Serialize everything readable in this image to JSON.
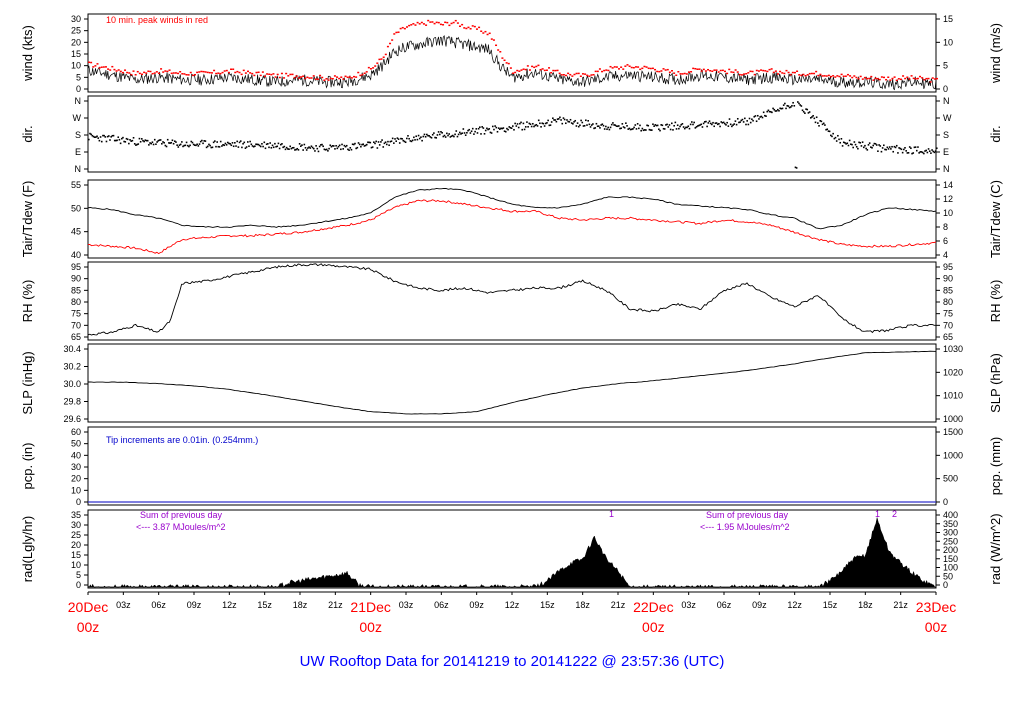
{
  "title": "UW Rooftop Data for 20141219  to  20141222 @ 23:57:36  (UTC)",
  "colors": {
    "primary": "#000000",
    "secondary": "#ff0000",
    "rain_note": "#0000cc",
    "rad_note": "#9900cc",
    "date_label": "#ff0000"
  },
  "x_axis": {
    "unit": "hours since 20Dec 00z",
    "range": [
      0,
      72
    ],
    "major": [
      {
        "hour": 0,
        "day": "20Dec",
        "time": "00z"
      },
      {
        "hour": 24,
        "day": "21Dec",
        "time": "00z"
      },
      {
        "hour": 48,
        "day": "22Dec",
        "time": "00z"
      },
      {
        "hour": 72,
        "day": "23Dec",
        "time": "00z"
      }
    ],
    "minor_labels": [
      "03z",
      "06z",
      "09z",
      "12z",
      "15z",
      "18z",
      "21z"
    ]
  },
  "panels": [
    {
      "id": "wind",
      "ylabel_left": "wind (kts)",
      "ylabel_right": "wind (m/s)",
      "left_ticks": [
        "0",
        "5",
        "10",
        "15",
        "20",
        "25",
        "30"
      ],
      "right_ticks": [
        "0",
        "5",
        "10",
        "15"
      ],
      "note": "10 min. peak winds in red"
    },
    {
      "id": "dir",
      "ylabel_left": "dir.",
      "ylabel_right": "dir.",
      "left_ticks": [
        "N",
        "E",
        "S",
        "W",
        "N"
      ],
      "right_ticks": [
        "N",
        "E",
        "S",
        "W",
        "N"
      ]
    },
    {
      "id": "temp",
      "ylabel_left": "Tair/Tdew (F)",
      "ylabel_right": "Tair/Tdew (C)",
      "left_ticks": [
        "40",
        "45",
        "50",
        "55"
      ],
      "right_ticks": [
        "4",
        "6",
        "8",
        "10",
        "12",
        "14"
      ]
    },
    {
      "id": "rh",
      "ylabel_left": "RH (%)",
      "ylabel_right": "RH (%)",
      "left_ticks": [
        "65",
        "70",
        "75",
        "80",
        "85",
        "90",
        "95"
      ],
      "right_ticks": [
        "65",
        "70",
        "75",
        "80",
        "85",
        "90",
        "95"
      ]
    },
    {
      "id": "slp",
      "ylabel_left": "SLP (inHg)",
      "ylabel_right": "SLP (hPa)",
      "left_ticks": [
        "29.6",
        "29.8",
        "30.0",
        "30.2",
        "30.4"
      ],
      "right_ticks": [
        "1000",
        "1010",
        "1020",
        "1030"
      ]
    },
    {
      "id": "pcp",
      "ylabel_left": "pcp. (in)",
      "ylabel_right": "pcp. (mm)",
      "left_ticks": [
        "0",
        "10",
        "20",
        "30",
        "40",
        "50",
        "60"
      ],
      "right_ticks": [
        "0",
        "500",
        "1000",
        "1500"
      ],
      "note": "Tip increments are 0.01in. (0.254mm.)"
    },
    {
      "id": "rad",
      "ylabel_left": "rad(Lgly/hr)",
      "ylabel_right": "rad (W/m^2)",
      "left_ticks": [
        "0",
        "5",
        "10",
        "15",
        "20",
        "25",
        "30",
        "35"
      ],
      "right_ticks": [
        "0",
        "50",
        "100",
        "150",
        "200",
        "250",
        "300",
        "350",
        "400"
      ],
      "notes": [
        {
          "line1": "Sum of previous day",
          "line2": "<--- 3.87 MJoules/m^2"
        },
        {
          "line1": "Sum of previous day",
          "line2": "<--- 1.95 MJoules/m^2"
        }
      ],
      "markers": [
        "1",
        "1",
        "2"
      ]
    }
  ],
  "chart_data": {
    "type": "line",
    "title": "UW Rooftop Data for 20141219  to  20141222 @ 23:57:36  (UTC)",
    "x_unit": "hours since 20Dec 00z",
    "xlim": [
      0,
      72
    ],
    "wind": {
      "ylabel": "wind (kts)",
      "ylim": [
        0,
        30
      ],
      "series": [
        {
          "name": "wind",
          "x": [
            0,
            2,
            4,
            6,
            8,
            10,
            12,
            14,
            16,
            18,
            20,
            22,
            24,
            25,
            26,
            27,
            28,
            29,
            30,
            31,
            32,
            33,
            34,
            35,
            36,
            38,
            40,
            42,
            44,
            46,
            48,
            50,
            52,
            54,
            56,
            58,
            60,
            62,
            64,
            66,
            68,
            70,
            72
          ],
          "values": [
            8,
            6,
            4,
            5,
            4,
            4,
            5,
            4,
            3,
            4,
            3,
            3,
            6,
            10,
            16,
            18,
            19,
            20,
            21,
            20,
            19,
            18,
            17,
            10,
            5,
            7,
            4,
            3,
            5,
            6,
            5,
            4,
            6,
            5,
            4,
            5,
            4,
            4,
            3,
            3,
            2,
            3,
            2
          ]
        },
        {
          "name": "10 min. peak winds",
          "x": [
            0,
            2,
            4,
            6,
            8,
            10,
            12,
            14,
            16,
            18,
            20,
            22,
            24,
            25,
            26,
            27,
            28,
            29,
            30,
            31,
            32,
            33,
            34,
            35,
            36,
            38,
            40,
            42,
            44,
            46,
            48,
            50,
            52,
            54,
            56,
            58,
            60,
            62,
            64,
            66,
            68,
            70,
            72
          ],
          "values": [
            11,
            9,
            7,
            8,
            7,
            7,
            8,
            7,
            6,
            6,
            5,
            5,
            9,
            14,
            24,
            27,
            28,
            29,
            28,
            29,
            27,
            26,
            24,
            15,
            8,
            10,
            7,
            6,
            9,
            10,
            9,
            7,
            9,
            8,
            7,
            8,
            7,
            7,
            6,
            5,
            5,
            5,
            4
          ]
        }
      ]
    },
    "temperature": {
      "ylabel": "Tair/Tdew (F)",
      "ylim": [
        37.5,
        57.5
      ],
      "series": [
        {
          "name": "Tair",
          "x": [
            0,
            2,
            4,
            6,
            8,
            10,
            12,
            14,
            16,
            18,
            20,
            22,
            24,
            26,
            28,
            30,
            32,
            34,
            36,
            38,
            40,
            42,
            44,
            46,
            48,
            50,
            52,
            54,
            56,
            58,
            60,
            62,
            64,
            66,
            68,
            70,
            72
          ],
          "values": [
            51,
            50.5,
            49,
            48,
            46,
            45.5,
            45.5,
            46,
            45.5,
            46,
            47,
            48,
            49.5,
            54,
            56,
            56.5,
            56,
            54,
            52,
            51,
            51,
            52,
            54,
            54,
            53.5,
            52,
            51.5,
            51,
            50.5,
            49,
            48,
            45,
            46,
            49,
            51,
            50.5,
            50
          ]
        },
        {
          "name": "Tdew",
          "x": [
            0,
            2,
            4,
            6,
            8,
            10,
            12,
            14,
            16,
            18,
            20,
            22,
            24,
            26,
            28,
            30,
            32,
            34,
            36,
            38,
            40,
            42,
            44,
            46,
            48,
            50,
            52,
            54,
            56,
            58,
            60,
            62,
            64,
            66,
            68,
            70,
            72
          ],
          "values": [
            40.5,
            40,
            39.5,
            38,
            42,
            42.5,
            43,
            43,
            43.5,
            44,
            45,
            46,
            47.5,
            51,
            53,
            53,
            52,
            51,
            50,
            50,
            48,
            47.5,
            48,
            48,
            47.5,
            47,
            46.5,
            47.5,
            47,
            46,
            44,
            42,
            40.5,
            40,
            40,
            40.5,
            41
          ]
        }
      ]
    },
    "direction": {
      "ylabel": "dir.",
      "categories": [
        "N",
        "E",
        "S",
        "W",
        "N"
      ],
      "series": [
        {
          "name": "dir",
          "x": [
            0,
            4,
            8,
            12,
            16,
            20,
            24,
            28,
            32,
            36,
            40,
            44,
            48,
            52,
            56,
            60,
            64,
            68,
            72
          ],
          "values": [
            175,
            150,
            135,
            135,
            130,
            115,
            130,
            170,
            200,
            225,
            260,
            230,
            225,
            240,
            255,
            360,
            140,
            110,
            100
          ]
        }
      ]
    },
    "rh": {
      "ylabel": "RH (%)",
      "ylim": [
        65,
        97
      ],
      "series": [
        {
          "name": "RH",
          "x": [
            0,
            2,
            4,
            6,
            7,
            8,
            10,
            12,
            14,
            16,
            18,
            20,
            22,
            24,
            26,
            28,
            30,
            32,
            34,
            36,
            38,
            40,
            42,
            44,
            46,
            48,
            50,
            52,
            54,
            56,
            58,
            60,
            62,
            64,
            66,
            68,
            70,
            72
          ],
          "values": [
            66,
            67,
            70,
            67,
            72,
            88,
            89,
            91,
            93,
            95,
            96,
            96,
            95,
            94,
            89,
            86,
            85,
            86,
            84,
            85,
            86,
            86,
            89,
            85,
            77,
            76,
            79,
            77,
            85,
            88,
            82,
            78,
            83,
            73,
            67,
            68,
            70,
            70
          ]
        }
      ]
    },
    "slp": {
      "ylabel": "SLP (inHg)",
      "ylim": [
        29.5,
        30.45
      ],
      "series": [
        {
          "name": "SLP",
          "x": [
            0,
            3,
            6,
            9,
            12,
            15,
            18,
            21,
            24,
            27,
            30,
            33,
            36,
            39,
            42,
            45,
            48,
            51,
            54,
            57,
            60,
            63,
            66,
            69,
            72
          ],
          "values": [
            30.0,
            30.0,
            29.98,
            29.95,
            29.9,
            29.83,
            29.75,
            29.67,
            29.6,
            29.57,
            29.57,
            29.6,
            29.72,
            29.83,
            29.92,
            29.98,
            30.02,
            30.07,
            30.12,
            30.18,
            30.25,
            30.33,
            30.4,
            30.41,
            30.42
          ]
        }
      ]
    },
    "precipitation": {
      "ylabel": "pcp. (in)",
      "ylim": [
        0,
        60
      ],
      "series": [
        {
          "name": "pcp",
          "x": [
            0,
            72
          ],
          "values": [
            0,
            0
          ]
        }
      ]
    },
    "radiation": {
      "ylabel": "rad(Lgly/hr)",
      "ylim": [
        0,
        35
      ],
      "series": [
        {
          "name": "rad",
          "x": [
            0,
            0.5,
            16,
            17,
            18,
            19,
            20,
            21,
            22,
            22.5,
            23,
            24,
            38,
            39,
            40,
            41,
            42,
            43,
            44,
            45,
            46,
            62,
            63,
            64,
            65,
            66,
            67,
            68,
            69,
            70,
            71,
            72
          ],
          "values": [
            1,
            0,
            0,
            2,
            3,
            4,
            5,
            6,
            7,
            4,
            1,
            0,
            0,
            3,
            8,
            12,
            14,
            25,
            14,
            8,
            0,
            0,
            3,
            8,
            14,
            16,
            34,
            18,
            12,
            7,
            3,
            0
          ]
        }
      ]
    }
  }
}
